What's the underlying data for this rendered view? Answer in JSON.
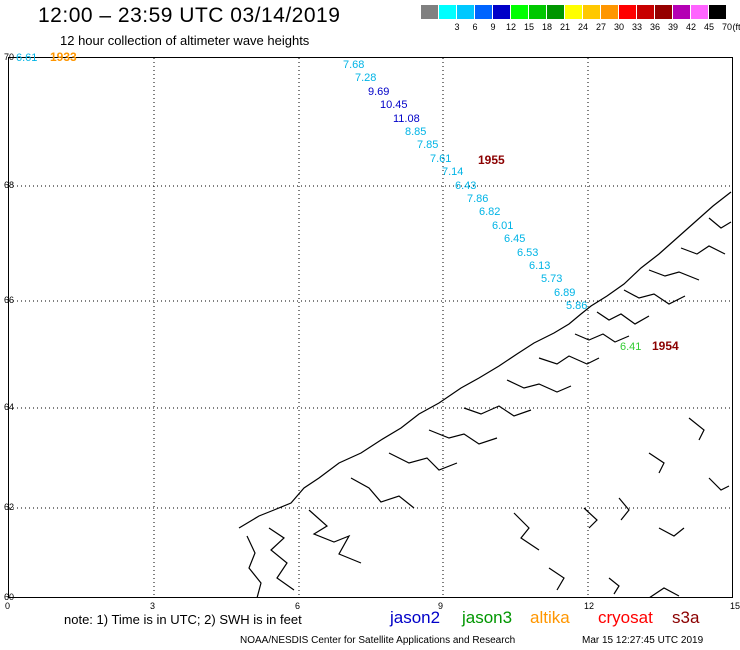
{
  "header": {
    "title": "12:00 – 23:59 UTC 03/14/2019",
    "subtitle": "12 hour collection of altimeter wave heights"
  },
  "legend": {
    "unit": "(ft)",
    "swatches": [
      {
        "color": "#808080",
        "label": ""
      },
      {
        "color": "#00ffff",
        "label": "3"
      },
      {
        "color": "#00c8ff",
        "label": "6"
      },
      {
        "color": "#0064ff",
        "label": "9"
      },
      {
        "color": "#0000c8",
        "label": "12"
      },
      {
        "color": "#00ff00",
        "label": "15"
      },
      {
        "color": "#00c800",
        "label": "18"
      },
      {
        "color": "#009600",
        "label": "21"
      },
      {
        "color": "#ffff00",
        "label": "24"
      },
      {
        "color": "#ffc800",
        "label": "27"
      },
      {
        "color": "#ff9600",
        "label": "30"
      },
      {
        "color": "#ff0000",
        "label": "33"
      },
      {
        "color": "#c80000",
        "label": "36"
      },
      {
        "color": "#960000",
        "label": "39"
      },
      {
        "color": "#b400b4",
        "label": "42"
      },
      {
        "color": "#ff64ff",
        "label": "45"
      },
      {
        "color": "#000000",
        "label": "70"
      }
    ]
  },
  "axes": {
    "lon_ticks": [
      "0",
      "3",
      "6",
      "9",
      "12",
      "15"
    ],
    "lat_ticks": [
      "70",
      "68",
      "66",
      "64",
      "62",
      "60"
    ],
    "lon_range": [
      0,
      15
    ],
    "lat_range": [
      60,
      70
    ]
  },
  "track": {
    "color": "#00b4e6",
    "labels": [
      "7.68",
      "7.28",
      "9.69",
      "10.45",
      "11.08",
      "8.85",
      "7.85",
      "7.61",
      "7.14",
      "6.43",
      "7.86",
      "6.82",
      "6.01",
      "6.45",
      "6.53",
      "6.13",
      "5.73",
      "6.89",
      "5.86"
    ],
    "label_colors": [
      "#00b4e6",
      "#00b4e6",
      "#0000c8",
      "#0000c8",
      "#0000c8",
      "#00b4e6",
      "#00b4e6",
      "#00b4e6",
      "#00b4e6",
      "#00b4e6",
      "#00b4e6",
      "#00b4e6",
      "#00b4e6",
      "#00b4e6",
      "#00b4e6",
      "#00b4e6",
      "#00b4e6",
      "#00b4e6",
      "#00b4e6"
    ]
  },
  "extra_values": [
    {
      "text": "6.61",
      "color": "#00b4e6"
    },
    {
      "text": "6.41",
      "color": "#33cc33"
    }
  ],
  "times": [
    {
      "text": "1933",
      "color": "#ff9600"
    },
    {
      "text": "1955",
      "color": "#8b0000"
    },
    {
      "text": "1954",
      "color": "#8b0000"
    }
  ],
  "footer": {
    "note": "note: 1) Time is in UTC; 2) SWH is in feet",
    "satellites": [
      {
        "name": "jason2",
        "color": "#0000c8"
      },
      {
        "name": "jason3",
        "color": "#009600"
      },
      {
        "name": "altika",
        "color": "#ff9600"
      },
      {
        "name": "cryosat",
        "color": "#ff0000"
      },
      {
        "name": "s3a",
        "color": "#8b0000"
      }
    ],
    "credit": "NOAA/NESDIS Center for Satellite Applications and Research",
    "timestamp": "Mar 15 12:27:45 UTC 2019"
  }
}
